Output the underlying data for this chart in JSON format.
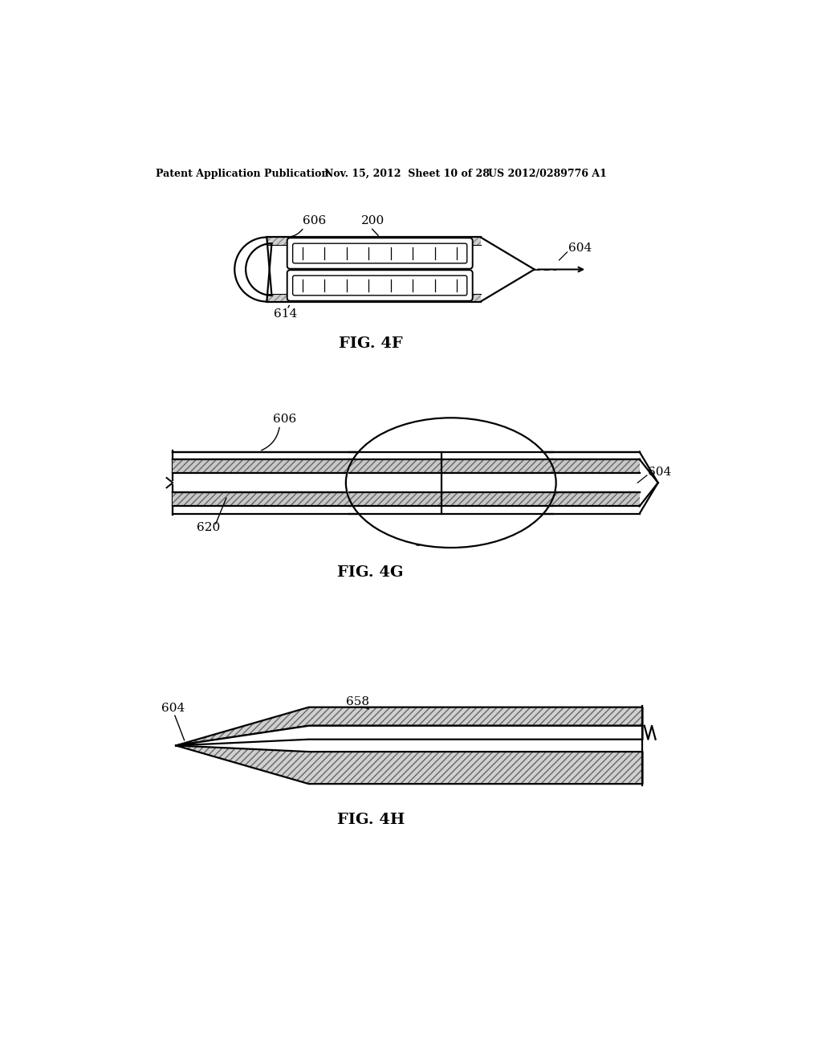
{
  "header_left": "Patent Application Publication",
  "header_mid": "Nov. 15, 2012  Sheet 10 of 28",
  "header_right": "US 2012/0289776 A1",
  "fig4f_label": "FIG. 4F",
  "fig4g_label": "FIG. 4G",
  "fig4h_label": "FIG. 4H",
  "bg_color": "#ffffff",
  "line_color": "#000000"
}
